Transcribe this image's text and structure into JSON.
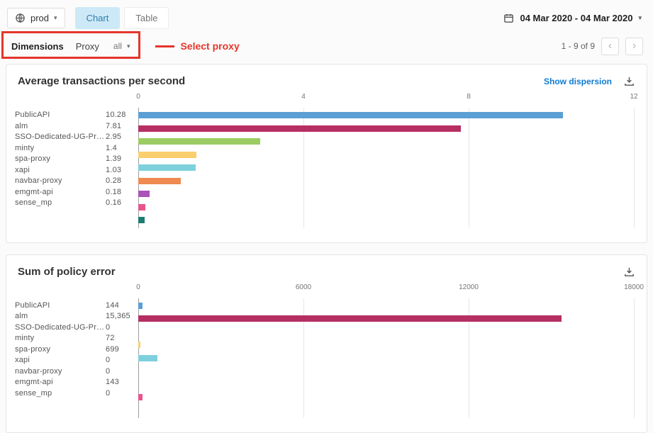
{
  "colors": {
    "annotation_red": "#e5352b",
    "link_blue": "#0d7bd2",
    "active_tab_bg": "#cde9f7",
    "active_tab_text": "#2e7fae"
  },
  "topbar": {
    "env": {
      "label": "prod"
    },
    "tabs": [
      {
        "label": "Chart",
        "active": true
      },
      {
        "label": "Table",
        "active": false
      }
    ],
    "date_range": "04 Mar 2020 - 04 Mar 2020"
  },
  "filters": {
    "dimensions_label": "Dimensions",
    "dimension_name": "Proxy",
    "dimension_value": "all",
    "annotation_label": "Select proxy"
  },
  "pagination": {
    "range_label": "1 - 9 of 9",
    "prev": "‹",
    "next": "›"
  },
  "chart_data": [
    {
      "type": "bar",
      "orientation": "horizontal",
      "title": "Average transactions per second",
      "actions": {
        "show_dispersion": "Show dispersion",
        "download_icon": "download"
      },
      "categories": [
        "PublicAPI",
        "alm",
        "SSO-Dedicated-UG-Pr…",
        "minty",
        "spa-proxy",
        "xapi",
        "navbar-proxy",
        "emgmt-api",
        "sense_mp"
      ],
      "values": [
        10.28,
        7.81,
        2.95,
        1.4,
        1.39,
        1.03,
        0.28,
        0.18,
        0.16
      ],
      "value_labels": [
        "10.28",
        "7.81",
        "2.95",
        "1.4",
        "1.39",
        "1.03",
        "0.28",
        "0.18",
        "0.16"
      ],
      "bar_colors": [
        "#5b9fd4",
        "#b52f63",
        "#9ccb63",
        "#fbce6e",
        "#7ed0dd",
        "#ee8a52",
        "#a952b8",
        "#e8548b",
        "#1e7d73"
      ],
      "xlim": [
        0,
        12
      ],
      "ticks": [
        0,
        4,
        8,
        12
      ],
      "tick_labels": [
        "0",
        "4",
        "8",
        "12"
      ],
      "grid": true,
      "legend": "none"
    },
    {
      "type": "bar",
      "orientation": "horizontal",
      "title": "Sum of policy error",
      "actions": {
        "download_icon": "download"
      },
      "categories": [
        "PublicAPI",
        "alm",
        "SSO-Dedicated-UG-Pr…",
        "minty",
        "spa-proxy",
        "xapi",
        "navbar-proxy",
        "emgmt-api",
        "sense_mp"
      ],
      "values": [
        144,
        15365,
        0,
        72,
        699,
        0,
        0,
        143,
        0
      ],
      "value_labels": [
        "144",
        "15,365",
        "0",
        "72",
        "699",
        "0",
        "0",
        "143",
        "0"
      ],
      "bar_colors": [
        "#5b9fd4",
        "#b52f63",
        "#9ccb63",
        "#fbce6e",
        "#7ed0dd",
        "#ee8a52",
        "#a952b8",
        "#e8548b",
        "#1e7d73"
      ],
      "xlim": [
        0,
        18000
      ],
      "ticks": [
        0,
        6000,
        12000,
        18000
      ],
      "tick_labels": [
        "0",
        "6000",
        "12000",
        "18000"
      ],
      "grid": true,
      "legend": "none"
    }
  ]
}
